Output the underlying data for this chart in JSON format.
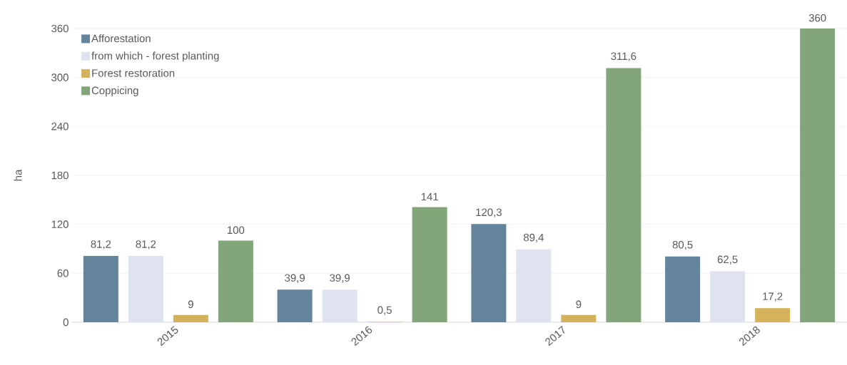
{
  "chart_data": {
    "type": "bar",
    "ylabel": "ha",
    "categories": [
      "2015",
      "2016",
      "2017",
      "2018"
    ],
    "series": [
      {
        "name": "Afforestation",
        "color": "#64849c",
        "values": [
          81.2,
          39.9,
          120.3,
          80.5
        ],
        "value_labels": [
          "81,2",
          "39,9",
          "120,3",
          "80,5"
        ]
      },
      {
        "name": "from which - forest planting",
        "color": "#dfe3ef",
        "values": [
          81.2,
          39.9,
          89.4,
          62.5
        ],
        "value_labels": [
          "81,2",
          "39,9",
          "89,4",
          "62,5"
        ]
      },
      {
        "name": "Forest restoration",
        "color": "#d4b35a",
        "values": [
          9,
          0.5,
          9,
          17.2
        ],
        "value_labels": [
          "9",
          "0,5",
          "9",
          "17,2"
        ]
      },
      {
        "name": "Coppicing",
        "color": "#82a67a",
        "values": [
          100,
          141,
          311.6,
          360
        ],
        "value_labels": [
          "100",
          "141",
          "311,6",
          "360"
        ]
      }
    ],
    "ylim": [
      0,
      360
    ],
    "yticks": [
      0,
      60,
      120,
      180,
      240,
      300,
      360
    ],
    "grid": "y",
    "legend": "top left"
  }
}
